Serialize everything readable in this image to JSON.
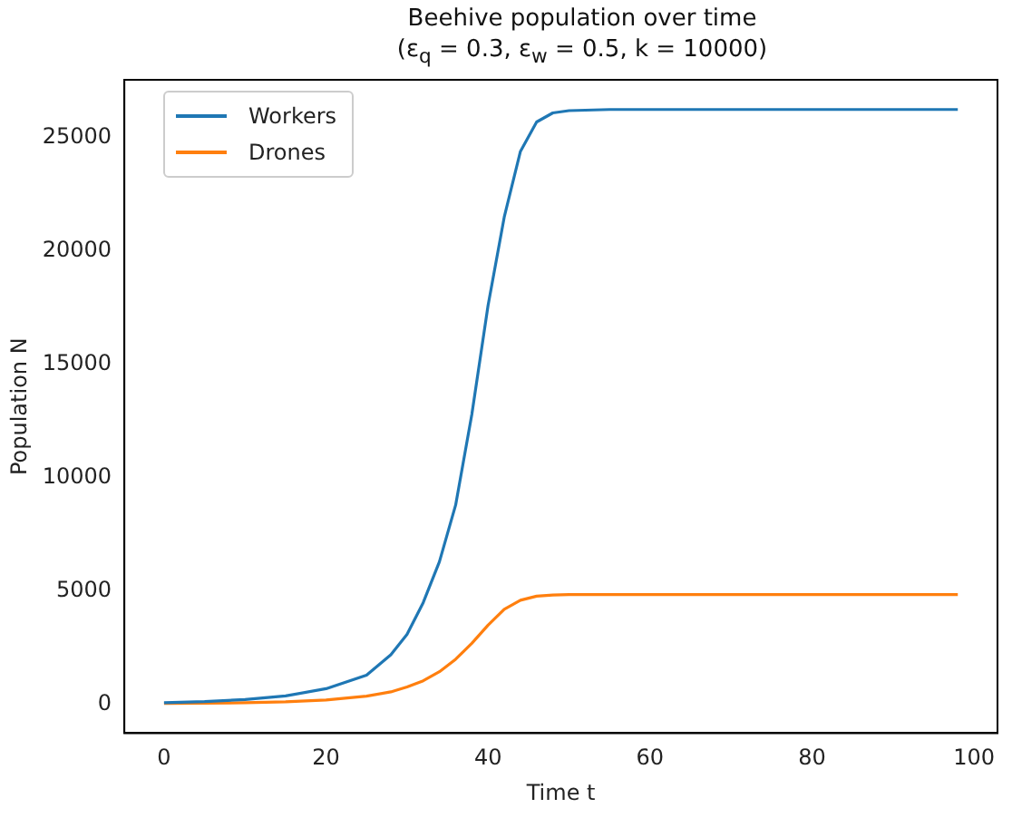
{
  "chart_data": {
    "type": "line",
    "title": "Beehive population over time",
    "subtitle": "(ε$_{q}$ = 0.3, ε$_{w}$ = 0.5, k = 10000)",
    "xlabel": "Time t",
    "ylabel": "Population N",
    "x": [
      0,
      5,
      10,
      15,
      20,
      25,
      28,
      30,
      32,
      34,
      36,
      38,
      40,
      42,
      44,
      46,
      48,
      50,
      55,
      60,
      70,
      80,
      90,
      98
    ],
    "series": [
      {
        "name": "Workers",
        "color": "#1f77b4",
        "values": [
          80,
          130,
          220,
          380,
          700,
          1300,
          2200,
          3100,
          4500,
          6300,
          8800,
          12800,
          17600,
          21500,
          24400,
          25700,
          26100,
          26200,
          26250,
          26250,
          26250,
          26250,
          26250,
          26250
        ]
      },
      {
        "name": "Drones",
        "color": "#ff7f0e",
        "values": [
          50,
          60,
          80,
          120,
          200,
          370,
          560,
          780,
          1050,
          1450,
          2000,
          2700,
          3500,
          4200,
          4600,
          4780,
          4830,
          4850,
          4850,
          4850,
          4850,
          4850,
          4850,
          4850
        ]
      }
    ],
    "xlim": [
      -4.9,
      102.9
    ],
    "xticks": [
      0,
      20,
      40,
      60,
      80,
      100
    ],
    "ylim": [
      -1260,
      27560
    ],
    "yticks": [
      0,
      5000,
      10000,
      15000,
      20000,
      25000
    ],
    "grid": false,
    "legend": "top left",
    "marker": "none",
    "line_style": "solid"
  }
}
